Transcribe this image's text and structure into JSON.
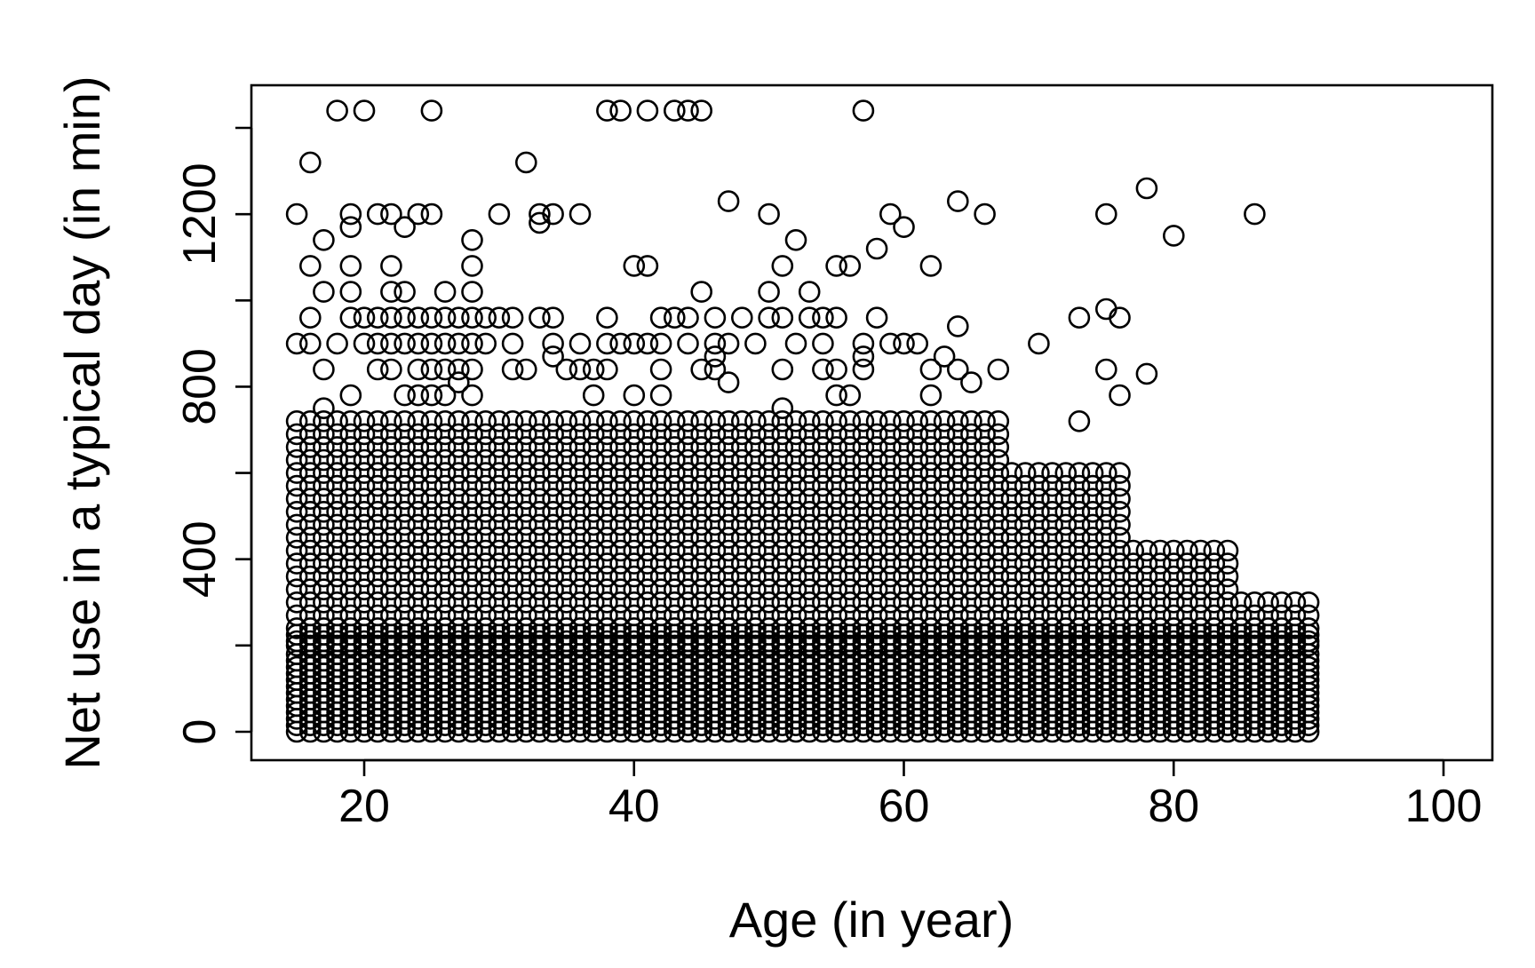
{
  "chart_data": {
    "type": "scatter",
    "title": "",
    "xlabel": "Age (in year)",
    "ylabel": "Net use in a typical day (in min)",
    "xlim": [
      12,
      104
    ],
    "ylim": [
      -60,
      1500
    ],
    "xticks": [
      20,
      40,
      60,
      80,
      100
    ],
    "yticks": [
      0,
      400,
      800,
      1200
    ],
    "ytick_unlabeled": [
      200,
      600,
      1000,
      1400
    ],
    "grid": false,
    "legend": "none",
    "marker": "open-circle",
    "marker_color": "#000000",
    "point_groups": [
      {
        "x_from": 15,
        "x_to": 90,
        "y": [
          0,
          15,
          30,
          45,
          60,
          75,
          90,
          105,
          120,
          135,
          150,
          165,
          180,
          200,
          210,
          225,
          240,
          270,
          300
        ]
      },
      {
        "x_from": 15,
        "x_to": 84,
        "y": [
          330,
          360,
          390,
          420
        ]
      },
      {
        "x_from": 15,
        "x_to": 76,
        "y": [
          450,
          480,
          510,
          540,
          570,
          600
        ]
      },
      {
        "x_from": 15,
        "x_to": 67,
        "y": [
          630,
          660,
          690,
          720
        ]
      }
    ],
    "points": [
      [
        18,
        1440
      ],
      [
        20,
        1440
      ],
      [
        25,
        1440
      ],
      [
        38,
        1440
      ],
      [
        39,
        1440
      ],
      [
        41,
        1440
      ],
      [
        43,
        1440
      ],
      [
        44,
        1440
      ],
      [
        45,
        1440
      ],
      [
        57,
        1440
      ],
      [
        16,
        1320
      ],
      [
        32,
        1320
      ],
      [
        15,
        1200
      ],
      [
        19,
        1200
      ],
      [
        21,
        1200
      ],
      [
        22,
        1200
      ],
      [
        24,
        1200
      ],
      [
        25,
        1200
      ],
      [
        30,
        1200
      ],
      [
        33,
        1200
      ],
      [
        34,
        1200
      ],
      [
        36,
        1200
      ],
      [
        50,
        1200
      ],
      [
        59,
        1200
      ],
      [
        66,
        1200
      ],
      [
        75,
        1200
      ],
      [
        86,
        1200
      ],
      [
        19,
        1170
      ],
      [
        23,
        1170
      ],
      [
        33,
        1180
      ],
      [
        47,
        1230
      ],
      [
        60,
        1170
      ],
      [
        64,
        1230
      ],
      [
        78,
        1260
      ],
      [
        17,
        1140
      ],
      [
        28,
        1140
      ],
      [
        52,
        1140
      ],
      [
        58,
        1120
      ],
      [
        80,
        1150
      ],
      [
        16,
        1080
      ],
      [
        19,
        1080
      ],
      [
        22,
        1080
      ],
      [
        28,
        1080
      ],
      [
        40,
        1080
      ],
      [
        41,
        1080
      ],
      [
        51,
        1080
      ],
      [
        55,
        1080
      ],
      [
        56,
        1080
      ],
      [
        62,
        1080
      ],
      [
        17,
        1020
      ],
      [
        19,
        1020
      ],
      [
        22,
        1020
      ],
      [
        23,
        1020
      ],
      [
        26,
        1020
      ],
      [
        28,
        1020
      ],
      [
        45,
        1020
      ],
      [
        50,
        1020
      ],
      [
        53,
        1020
      ],
      [
        16,
        960
      ],
      [
        19,
        960
      ],
      [
        20,
        960
      ],
      [
        21,
        960
      ],
      [
        22,
        960
      ],
      [
        23,
        960
      ],
      [
        24,
        960
      ],
      [
        25,
        960
      ],
      [
        26,
        960
      ],
      [
        27,
        960
      ],
      [
        28,
        960
      ],
      [
        29,
        960
      ],
      [
        30,
        960
      ],
      [
        31,
        960
      ],
      [
        33,
        960
      ],
      [
        34,
        960
      ],
      [
        38,
        960
      ],
      [
        42,
        960
      ],
      [
        43,
        960
      ],
      [
        44,
        960
      ],
      [
        46,
        960
      ],
      [
        48,
        960
      ],
      [
        50,
        960
      ],
      [
        51,
        960
      ],
      [
        53,
        960
      ],
      [
        54,
        960
      ],
      [
        55,
        960
      ],
      [
        58,
        960
      ],
      [
        73,
        960
      ],
      [
        75,
        980
      ],
      [
        76,
        960
      ],
      [
        64,
        940
      ],
      [
        15,
        900
      ],
      [
        16,
        900
      ],
      [
        18,
        900
      ],
      [
        20,
        900
      ],
      [
        21,
        900
      ],
      [
        22,
        900
      ],
      [
        23,
        900
      ],
      [
        24,
        900
      ],
      [
        25,
        900
      ],
      [
        26,
        900
      ],
      [
        27,
        900
      ],
      [
        28,
        900
      ],
      [
        29,
        900
      ],
      [
        31,
        900
      ],
      [
        34,
        900
      ],
      [
        36,
        900
      ],
      [
        38,
        900
      ],
      [
        39,
        900
      ],
      [
        40,
        900
      ],
      [
        41,
        900
      ],
      [
        42,
        900
      ],
      [
        44,
        900
      ],
      [
        46,
        900
      ],
      [
        47,
        900
      ],
      [
        49,
        900
      ],
      [
        52,
        900
      ],
      [
        54,
        900
      ],
      [
        57,
        900
      ],
      [
        59,
        900
      ],
      [
        60,
        900
      ],
      [
        61,
        900
      ],
      [
        70,
        900
      ],
      [
        17,
        840
      ],
      [
        21,
        840
      ],
      [
        22,
        840
      ],
      [
        24,
        840
      ],
      [
        25,
        840
      ],
      [
        26,
        840
      ],
      [
        27,
        840
      ],
      [
        28,
        840
      ],
      [
        31,
        840
      ],
      [
        32,
        840
      ],
      [
        35,
        840
      ],
      [
        36,
        840
      ],
      [
        37,
        840
      ],
      [
        38,
        840
      ],
      [
        42,
        840
      ],
      [
        45,
        840
      ],
      [
        46,
        840
      ],
      [
        51,
        840
      ],
      [
        54,
        840
      ],
      [
        55,
        840
      ],
      [
        57,
        840
      ],
      [
        62,
        840
      ],
      [
        64,
        840
      ],
      [
        67,
        840
      ],
      [
        75,
        840
      ],
      [
        78,
        830
      ],
      [
        47,
        810
      ],
      [
        65,
        810
      ],
      [
        63,
        870
      ],
      [
        57,
        870
      ],
      [
        46,
        870
      ],
      [
        34,
        870
      ],
      [
        17,
        750
      ],
      [
        19,
        780
      ],
      [
        23,
        780
      ],
      [
        24,
        780
      ],
      [
        25,
        780
      ],
      [
        26,
        780
      ],
      [
        28,
        780
      ],
      [
        37,
        780
      ],
      [
        40,
        780
      ],
      [
        42,
        780
      ],
      [
        51,
        750
      ],
      [
        55,
        780
      ],
      [
        56,
        780
      ],
      [
        62,
        780
      ],
      [
        76,
        780
      ],
      [
        73,
        720
      ],
      [
        27,
        810
      ]
    ]
  }
}
